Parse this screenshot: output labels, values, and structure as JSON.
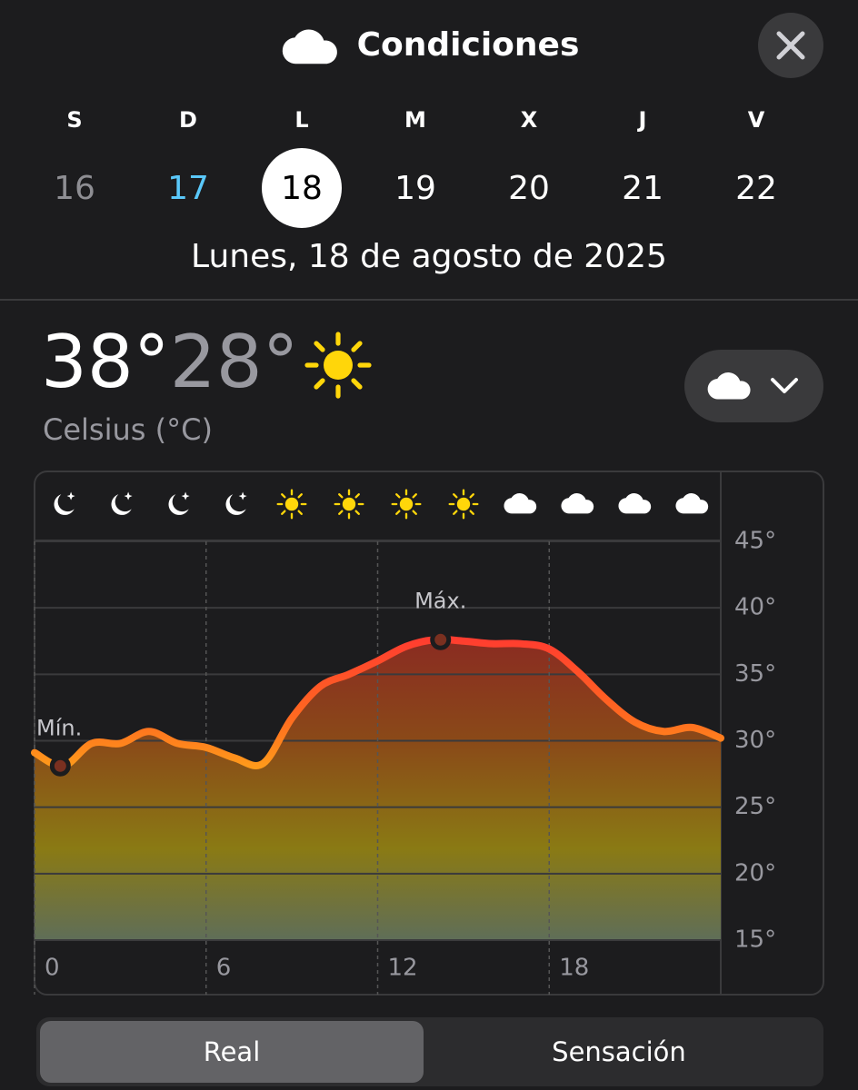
{
  "header": {
    "title": "Condiciones"
  },
  "days": {
    "letters": [
      "S",
      "D",
      "L",
      "M",
      "X",
      "J",
      "V"
    ],
    "numbers": [
      16,
      17,
      18,
      19,
      20,
      21,
      22
    ]
  },
  "date_label": "Lunes, 18 de agosto de 2025",
  "summary": {
    "high": "38°",
    "low": "28°",
    "unit": "Celsius (°C)"
  },
  "chart_data": {
    "type": "line",
    "x": [
      0,
      1,
      2,
      3,
      4,
      5,
      6,
      7,
      8,
      9,
      10,
      11,
      12,
      13,
      14,
      15,
      16,
      17,
      18,
      19,
      20,
      21,
      22,
      23,
      24
    ],
    "values": [
      29.1,
      28.1,
      29.8,
      29.8,
      30.7,
      29.8,
      29.5,
      28.7,
      28.3,
      31.7,
      34.1,
      35,
      36,
      37.1,
      37.6,
      37.5,
      37.3,
      37.3,
      36.9,
      35.2,
      33.1,
      31.4,
      30.7,
      31,
      30.2
    ],
    "annotations": [
      {
        "text": "Mín.",
        "x": 0.9,
        "y": 28.1
      },
      {
        "text": "Máx.",
        "x": 14.2,
        "y": 37.6
      }
    ],
    "xlim": [
      0,
      24
    ],
    "xticks": [
      0,
      6,
      12,
      18
    ],
    "ylim": [
      15,
      45
    ],
    "yticks": [
      {
        "value": 15,
        "label": "15°"
      },
      {
        "value": 20,
        "label": "20°"
      },
      {
        "value": 25,
        "label": "25°"
      },
      {
        "value": 30,
        "label": "30°"
      },
      {
        "value": 35,
        "label": "35°"
      },
      {
        "value": 40,
        "label": "40°"
      },
      {
        "value": 45,
        "label": "45°"
      }
    ],
    "grid": true
  },
  "toggle": {
    "options": [
      "Real",
      "Sensación"
    ],
    "selected": 0
  }
}
